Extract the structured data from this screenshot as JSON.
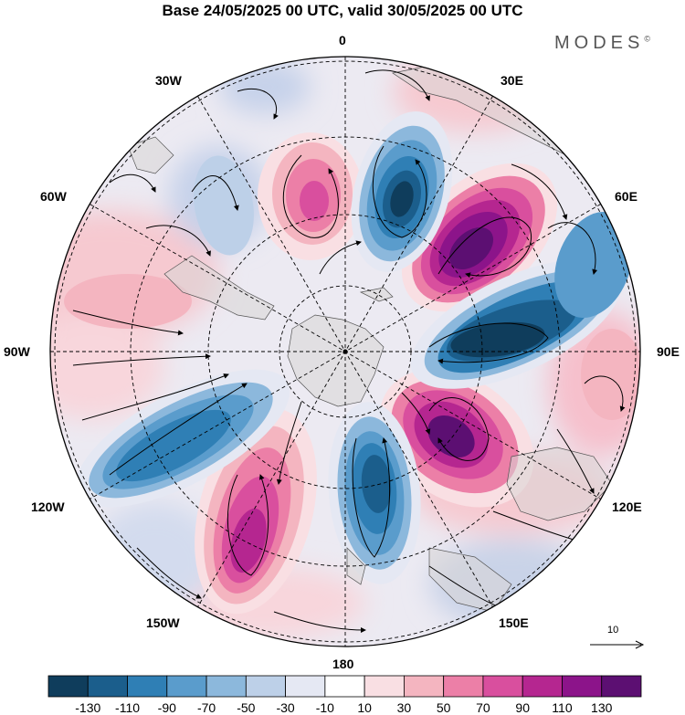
{
  "title": "Base 24/05/2025 00 UTC, valid 30/05/2025 00 UTC",
  "brand": {
    "name": "MODES",
    "mark": "©"
  },
  "longitude_labels": [
    {
      "id": "lon-0",
      "text": "0"
    },
    {
      "id": "lon-30e",
      "text": "30E"
    },
    {
      "id": "lon-60e",
      "text": "60E"
    },
    {
      "id": "lon-90e",
      "text": "90E"
    },
    {
      "id": "lon-120e",
      "text": "120E"
    },
    {
      "id": "lon-150e",
      "text": "150E"
    },
    {
      "id": "lon-180",
      "text": "180"
    },
    {
      "id": "lon-150w",
      "text": "150W"
    },
    {
      "id": "lon-120w",
      "text": "120W"
    },
    {
      "id": "lon-90w",
      "text": "90W"
    },
    {
      "id": "lon-60w",
      "text": "60W"
    },
    {
      "id": "lon-30w",
      "text": "30W"
    }
  ],
  "vector_reference": {
    "label": "10"
  },
  "colorbar": {
    "tick_labels": [
      "-130",
      "-110",
      "-90",
      "-70",
      "-50",
      "-30",
      "-10",
      "10",
      "30",
      "50",
      "70",
      "90",
      "110",
      "130"
    ],
    "colors": [
      "#0f3d5c",
      "#1b5e8c",
      "#2f7fb5",
      "#5a9ccc",
      "#8cb8dc",
      "#bdd0e8",
      "#e5e8f3",
      "#ffffff",
      "#f9dfe3",
      "#f4b5c0",
      "#ec7fa7",
      "#d94f9e",
      "#b52690",
      "#8c148a",
      "#5c0f72"
    ]
  },
  "colors": {
    "land": "#d9d5d5",
    "grid": "#000000"
  }
}
